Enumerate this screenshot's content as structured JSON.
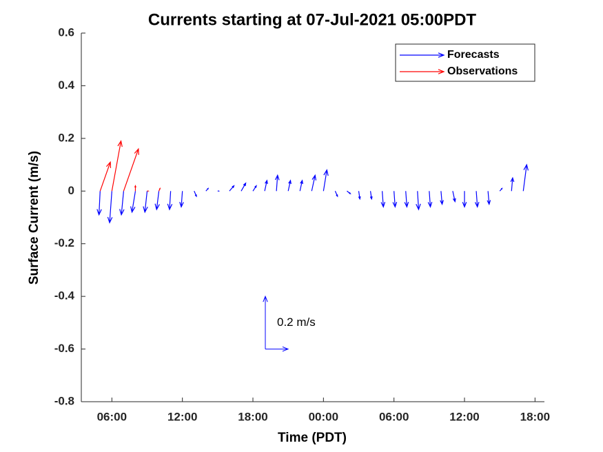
{
  "chart_data": {
    "type": "quiver",
    "title": "Currents starting at 07-Jul-2021 05:00PDT",
    "x_label": "Time (PDT)",
    "y_label": "Surface Current (m/s)",
    "xlim": [
      3.4,
      42.8
    ],
    "ylim": [
      -0.8,
      0.6
    ],
    "xticks": [
      {
        "value": 6,
        "label": "06:00"
      },
      {
        "value": 12,
        "label": "12:00"
      },
      {
        "value": 18,
        "label": "18:00"
      },
      {
        "value": 24,
        "label": "00:00"
      },
      {
        "value": 30,
        "label": "06:00"
      },
      {
        "value": 36,
        "label": "12:00"
      },
      {
        "value": 42,
        "label": "18:00"
      }
    ],
    "yticks": [
      -0.8,
      -0.6,
      -0.4,
      -0.2,
      0,
      0.2,
      0.4,
      0.6
    ],
    "scale_arrow": {
      "value": 0.2,
      "label": "0.2 m/s"
    },
    "series": [
      {
        "name": "Forecasts",
        "color": "#0000ff",
        "x": [
          5,
          6,
          7,
          8,
          9,
          10,
          11,
          12,
          13,
          14,
          15,
          16,
          17,
          18,
          19,
          20,
          21,
          22,
          23,
          24,
          25,
          26,
          27,
          28,
          29,
          30,
          31,
          32,
          33,
          34,
          35,
          36,
          37,
          38,
          39,
          40,
          41
        ],
        "u": [
          -0.01,
          -0.02,
          -0.02,
          -0.03,
          -0.02,
          -0.02,
          -0.01,
          -0.01,
          0.02,
          0.02,
          0.01,
          0.04,
          0.04,
          0.03,
          0.02,
          0.01,
          0.02,
          0.02,
          0.03,
          0.03,
          0.02,
          0.03,
          0.01,
          0.01,
          0.01,
          0.01,
          0.01,
          0.01,
          0.01,
          0.01,
          0.02,
          0.0,
          0.01,
          0.01,
          0.02,
          0.01,
          0.03
        ],
        "values": [
          -0.09,
          -0.12,
          -0.09,
          -0.08,
          -0.08,
          -0.07,
          -0.07,
          -0.06,
          -0.02,
          0.01,
          0.0,
          0.02,
          0.03,
          0.02,
          0.04,
          0.06,
          0.04,
          0.04,
          0.06,
          0.08,
          -0.02,
          -0.01,
          -0.03,
          -0.03,
          -0.06,
          -0.06,
          -0.06,
          -0.07,
          -0.06,
          -0.05,
          -0.04,
          -0.06,
          -0.06,
          -0.05,
          0.01,
          0.05,
          0.1
        ]
      },
      {
        "name": "Observations",
        "color": "#ff0000",
        "x": [
          5,
          6,
          7,
          8,
          9,
          10
        ],
        "u": [
          0.09,
          0.08,
          0.13,
          0.0,
          0.01,
          0.01
        ],
        "values": [
          0.11,
          0.19,
          0.16,
          0.02,
          0.0,
          0.01
        ]
      }
    ]
  }
}
